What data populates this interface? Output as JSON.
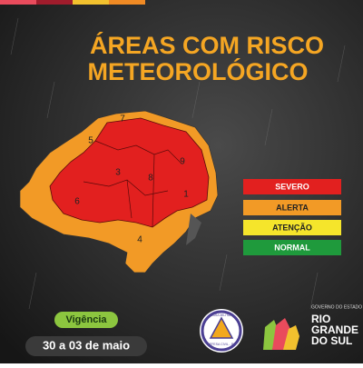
{
  "header": {
    "title_lines": [
      "ÁREAS COM RISCO",
      "METEOROLÓGICO"
    ]
  },
  "map": {
    "region_labels": [
      "5",
      "7",
      "9",
      "3",
      "8",
      "6",
      "1",
      "4"
    ]
  },
  "legend": {
    "items": [
      "SEVERO",
      "ALERTA",
      "ATENÇÃO",
      "NORMAL"
    ]
  },
  "validity": {
    "label": "Vigência",
    "dates": "30 a 03 de maio"
  },
  "logos": {
    "civil_defense_top": "CASA MILITAR",
    "civil_defense_bottom": "DEFESA CIVIL - RS",
    "government": "GOVERNO DO ESTADO",
    "state_line1": "RIO",
    "state_line2": "GRANDE",
    "state_line3": "DO SUL"
  }
}
